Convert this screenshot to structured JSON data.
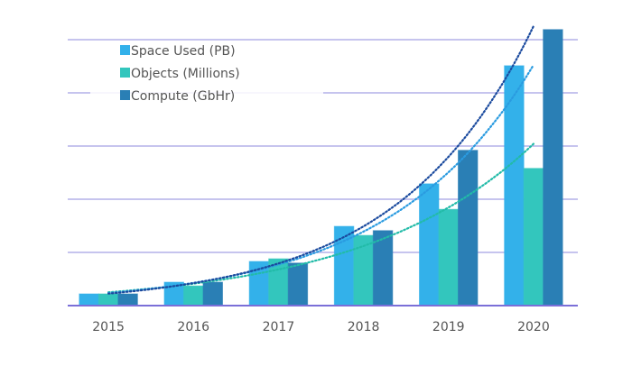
{
  "chart_data": {
    "type": "bar",
    "title": "",
    "xlabel": "",
    "ylabel": "",
    "categories": [
      "2015",
      "2016",
      "2017",
      "2018",
      "2019",
      "2020"
    ],
    "series": [
      {
        "name": "Space Used (PB)",
        "color": "#33b1ea",
        "trend_color": "#2a9be0",
        "values": [
          0.22,
          0.44,
          0.83,
          1.49,
          2.29,
          4.51
        ]
      },
      {
        "name": "Objects (Millions)",
        "color": "#33c6bd",
        "trend_color": "#22bba8",
        "values": [
          0.22,
          0.37,
          0.88,
          1.32,
          1.81,
          2.58
        ]
      },
      {
        "name": "Compute (GbHr)",
        "color": "#2a7fb5",
        "trend_color": "#1a4a9e",
        "values": [
          0.22,
          0.44,
          0.8,
          1.41,
          2.92,
          5.19
        ]
      }
    ],
    "trendlines": "exponential, dotted",
    "ylim": [
      0,
      5.2
    ],
    "y_tick_labels_shown": false,
    "grid": true,
    "grid_color": "#b3b0e8",
    "legend_placement": "top-left"
  }
}
